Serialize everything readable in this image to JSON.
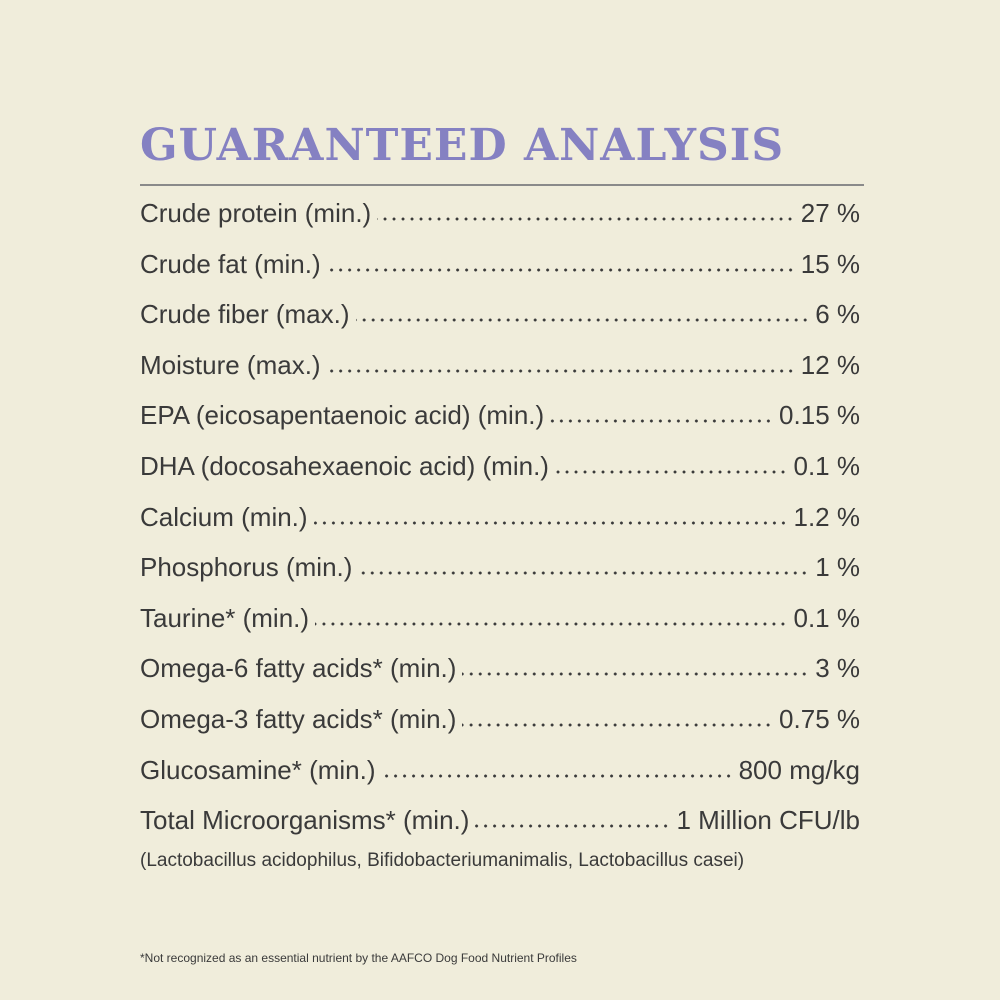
{
  "title": "GUARANTEED ANALYSIS",
  "rows": [
    {
      "label": "Crude protein (min.)",
      "value": "27 %"
    },
    {
      "label": "Crude fat (min.)",
      "value": "15 %"
    },
    {
      "label": "Crude fiber (max.)",
      "value": "6 %"
    },
    {
      "label": "Moisture (max.)",
      "value": "12 %"
    },
    {
      "label": "EPA (eicosapentaenoic acid) (min.)",
      "value": "0.15 %"
    },
    {
      "label": "DHA (docosahexaenoic acid) (min.)",
      "value": "0.1 %"
    },
    {
      "label": "Calcium (min.)",
      "value": "1.2 %"
    },
    {
      "label": "Phosphorus (min.)",
      "value": "1 %"
    },
    {
      "label": "Taurine* (min.)",
      "value": "0.1 %"
    },
    {
      "label": "Omega-6 fatty acids* (min.)",
      "value": "3 %"
    },
    {
      "label": "Omega-3 fatty acids* (min.)",
      "value": "0.75 %"
    },
    {
      "label": "Glucosamine* (min.)",
      "value": "800 mg/kg"
    },
    {
      "label": "Total Microorganisms* (min.)",
      "value": "1 Million CFU/lb"
    }
  ],
  "note": "(Lactobacillus acidophilus, Bifidobacteriumanimalis, Lactobacillus casei)",
  "footnote": "*Not recognized as an essential nutrient by the AAFCO Dog Food Nutrient Profiles"
}
